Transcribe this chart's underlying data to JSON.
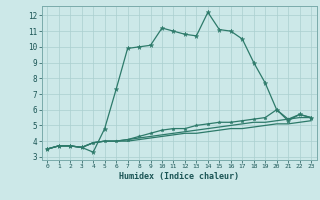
{
  "xlabel": "Humidex (Indice chaleur)",
  "xlim": [
    -0.5,
    23.5
  ],
  "ylim": [
    2.8,
    12.6
  ],
  "xticks": [
    0,
    1,
    2,
    3,
    4,
    5,
    6,
    7,
    8,
    9,
    10,
    11,
    12,
    13,
    14,
    15,
    16,
    17,
    18,
    19,
    20,
    21,
    22,
    23
  ],
  "yticks": [
    3,
    4,
    5,
    6,
    7,
    8,
    9,
    10,
    11,
    12
  ],
  "bg_color": "#cce8e8",
  "line_color": "#2d7a6a",
  "grid_color": "#aacfcf",
  "line1_x": [
    0,
    1,
    2,
    3,
    4,
    5,
    6,
    7,
    8,
    9,
    10,
    11,
    12,
    13,
    14,
    15,
    16,
    17,
    18,
    19,
    20,
    21,
    22,
    23
  ],
  "line1_y": [
    3.5,
    3.7,
    3.7,
    3.6,
    3.3,
    4.8,
    7.3,
    9.9,
    10.0,
    10.1,
    11.2,
    11.0,
    10.8,
    10.7,
    12.2,
    11.1,
    11.0,
    10.5,
    9.0,
    7.7,
    6.0,
    5.3,
    5.7,
    5.5
  ],
  "line2_x": [
    0,
    1,
    2,
    3,
    4,
    5,
    6,
    7,
    8,
    9,
    10,
    11,
    12,
    13,
    14,
    15,
    16,
    17,
    18,
    19,
    20,
    21,
    22,
    23
  ],
  "line2_y": [
    3.5,
    3.7,
    3.7,
    3.6,
    3.9,
    4.0,
    4.0,
    4.1,
    4.3,
    4.5,
    4.7,
    4.8,
    4.8,
    5.0,
    5.1,
    5.2,
    5.2,
    5.3,
    5.4,
    5.5,
    6.0,
    5.4,
    5.7,
    5.5
  ],
  "line3_x": [
    0,
    1,
    2,
    3,
    4,
    5,
    6,
    7,
    8,
    9,
    10,
    11,
    12,
    13,
    14,
    15,
    16,
    17,
    18,
    19,
    20,
    21,
    22,
    23
  ],
  "line3_y": [
    3.5,
    3.7,
    3.7,
    3.6,
    3.9,
    4.0,
    4.0,
    4.1,
    4.2,
    4.3,
    4.4,
    4.5,
    4.6,
    4.7,
    4.8,
    4.9,
    5.0,
    5.1,
    5.2,
    5.2,
    5.3,
    5.4,
    5.5,
    5.5
  ],
  "line4_x": [
    0,
    1,
    2,
    3,
    4,
    5,
    6,
    7,
    8,
    9,
    10,
    11,
    12,
    13,
    14,
    15,
    16,
    17,
    18,
    19,
    20,
    21,
    22,
    23
  ],
  "line4_y": [
    3.5,
    3.7,
    3.7,
    3.6,
    3.9,
    4.0,
    4.0,
    4.0,
    4.1,
    4.2,
    4.3,
    4.4,
    4.5,
    4.5,
    4.6,
    4.7,
    4.8,
    4.8,
    4.9,
    5.0,
    5.1,
    5.1,
    5.2,
    5.3
  ]
}
